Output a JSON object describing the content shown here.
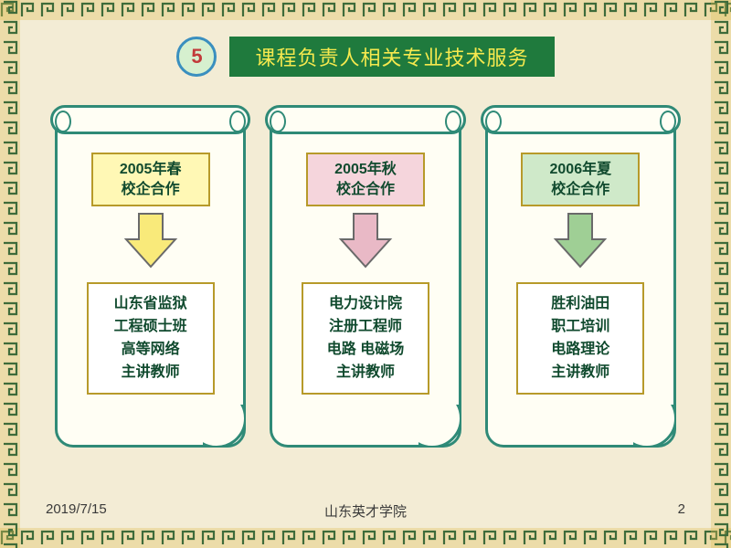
{
  "slide": {
    "background_color": "#f3ecd5",
    "border_color": "#3e6b3a",
    "border_accent": "#e0bf5a"
  },
  "header": {
    "number": "5",
    "title": "课程负责人相关专业技术服务",
    "badge": {
      "fill": "#d6f0cf",
      "stroke": "#3a8fbf",
      "text_color": "#c23a3a"
    },
    "banner": {
      "fill": "#1f7a3d",
      "text_color": "#f6e94e"
    }
  },
  "scrolls": [
    {
      "period_line1": "2005年春",
      "period_line2": "校企合作",
      "period_fill": "#fff8b5",
      "arrow_fill": "#f9ea7a",
      "details": [
        "山东省监狱",
        "工程硕士班",
        "高等网络",
        "主讲教师"
      ],
      "scroll_stroke": "#2f8a77",
      "text_color": "#104a2e",
      "box_border": "#b79a2a"
    },
    {
      "period_line1": "2005年秋",
      "period_line2": "校企合作",
      "period_fill": "#f5d5dc",
      "arrow_fill": "#e9b9c6",
      "details": [
        "电力设计院",
        "注册工程师",
        "电路 电磁场",
        "主讲教师"
      ],
      "scroll_stroke": "#2f8a77",
      "text_color": "#104a2e",
      "box_border": "#b79a2a"
    },
    {
      "period_line1": "2006年夏",
      "period_line2": "校企合作",
      "period_fill": "#cfe9c9",
      "arrow_fill": "#9fcf95",
      "details": [
        "胜利油田",
        "职工培训",
        "电路理论",
        "主讲教师"
      ],
      "scroll_stroke": "#2f8a77",
      "text_color": "#104a2e",
      "box_border": "#b79a2a"
    }
  ],
  "footer": {
    "date": "2019/7/15",
    "org": "山东英才学院",
    "page": "2",
    "text_color": "#3a3a3a"
  },
  "arrow_stroke": "#6a6a6a"
}
